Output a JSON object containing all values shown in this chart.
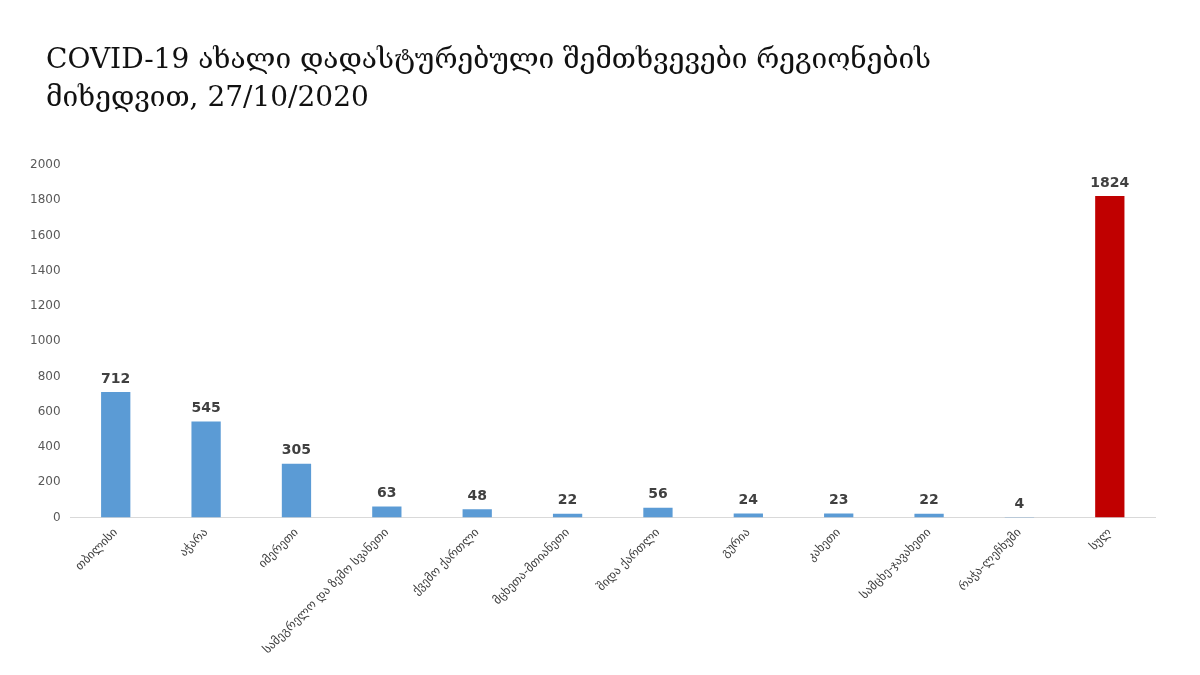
{
  "chart_data": {
    "type": "bar",
    "title": "COVID-19 ახალი დადასტურებული შემთხვევები რეგიონების მიხედვით, 27/10/2020",
    "categories": [
      "თბილისი",
      "აჭარა",
      "იმერეთი",
      "სამეგრელო და ზემო სვანეთი",
      "ქვემო ქართლი",
      "მცხეთა-მთიანეთი",
      "შიდა ქართლი",
      "გურია",
      "კახეთი",
      "სამცხე-ჯავახეთი",
      "რაჭა-ლეჩხუმი",
      "სულ"
    ],
    "values": [
      712,
      545,
      305,
      63,
      48,
      22,
      56,
      24,
      23,
      22,
      4,
      1824
    ],
    "colors": [
      "#5b9bd5",
      "#5b9bd5",
      "#5b9bd5",
      "#5b9bd5",
      "#5b9bd5",
      "#5b9bd5",
      "#5b9bd5",
      "#5b9bd5",
      "#5b9bd5",
      "#5b9bd5",
      "#5b9bd5",
      "#c00000"
    ],
    "ylim": [
      0,
      2000
    ],
    "yticks": [
      0,
      200,
      400,
      600,
      800,
      1000,
      1200,
      1400,
      1600,
      1800,
      2000
    ],
    "grid": false,
    "legend": false,
    "data_labels": true
  }
}
